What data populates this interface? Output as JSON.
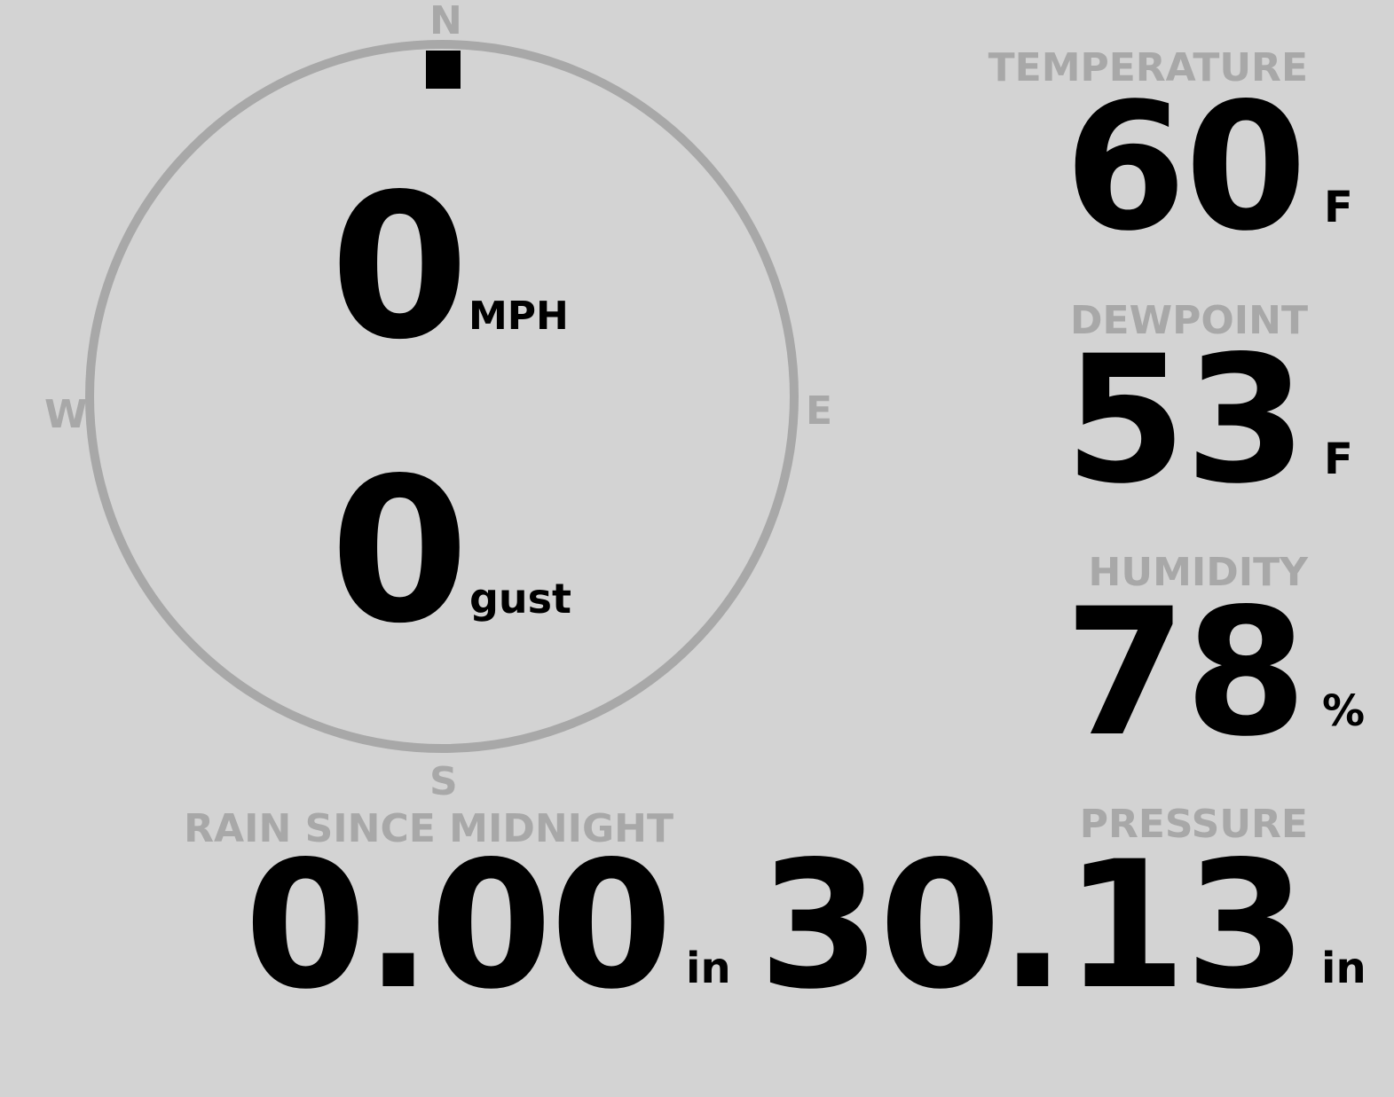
{
  "colors": {
    "background": "#d3d3d3",
    "muted": "#a8a8a8",
    "value": "#000000"
  },
  "wind": {
    "compass": {
      "n": "N",
      "e": "E",
      "s": "S",
      "w": "W"
    },
    "direction_deg": 0,
    "speed": "0",
    "speed_unit": "MPH",
    "gust": "0",
    "gust_unit": "gust"
  },
  "temperature": {
    "label": "TEMPERATURE",
    "value": "60",
    "unit": "F"
  },
  "dewpoint": {
    "label": "DEWPOINT",
    "value": "53",
    "unit": "F"
  },
  "humidity": {
    "label": "HUMIDITY",
    "value": "78",
    "unit": "%"
  },
  "rain": {
    "label": "RAIN SINCE MIDNIGHT",
    "value": "0.00",
    "unit": "in"
  },
  "pressure": {
    "label": "PRESSURE",
    "value": "30.13",
    "unit": "in"
  }
}
